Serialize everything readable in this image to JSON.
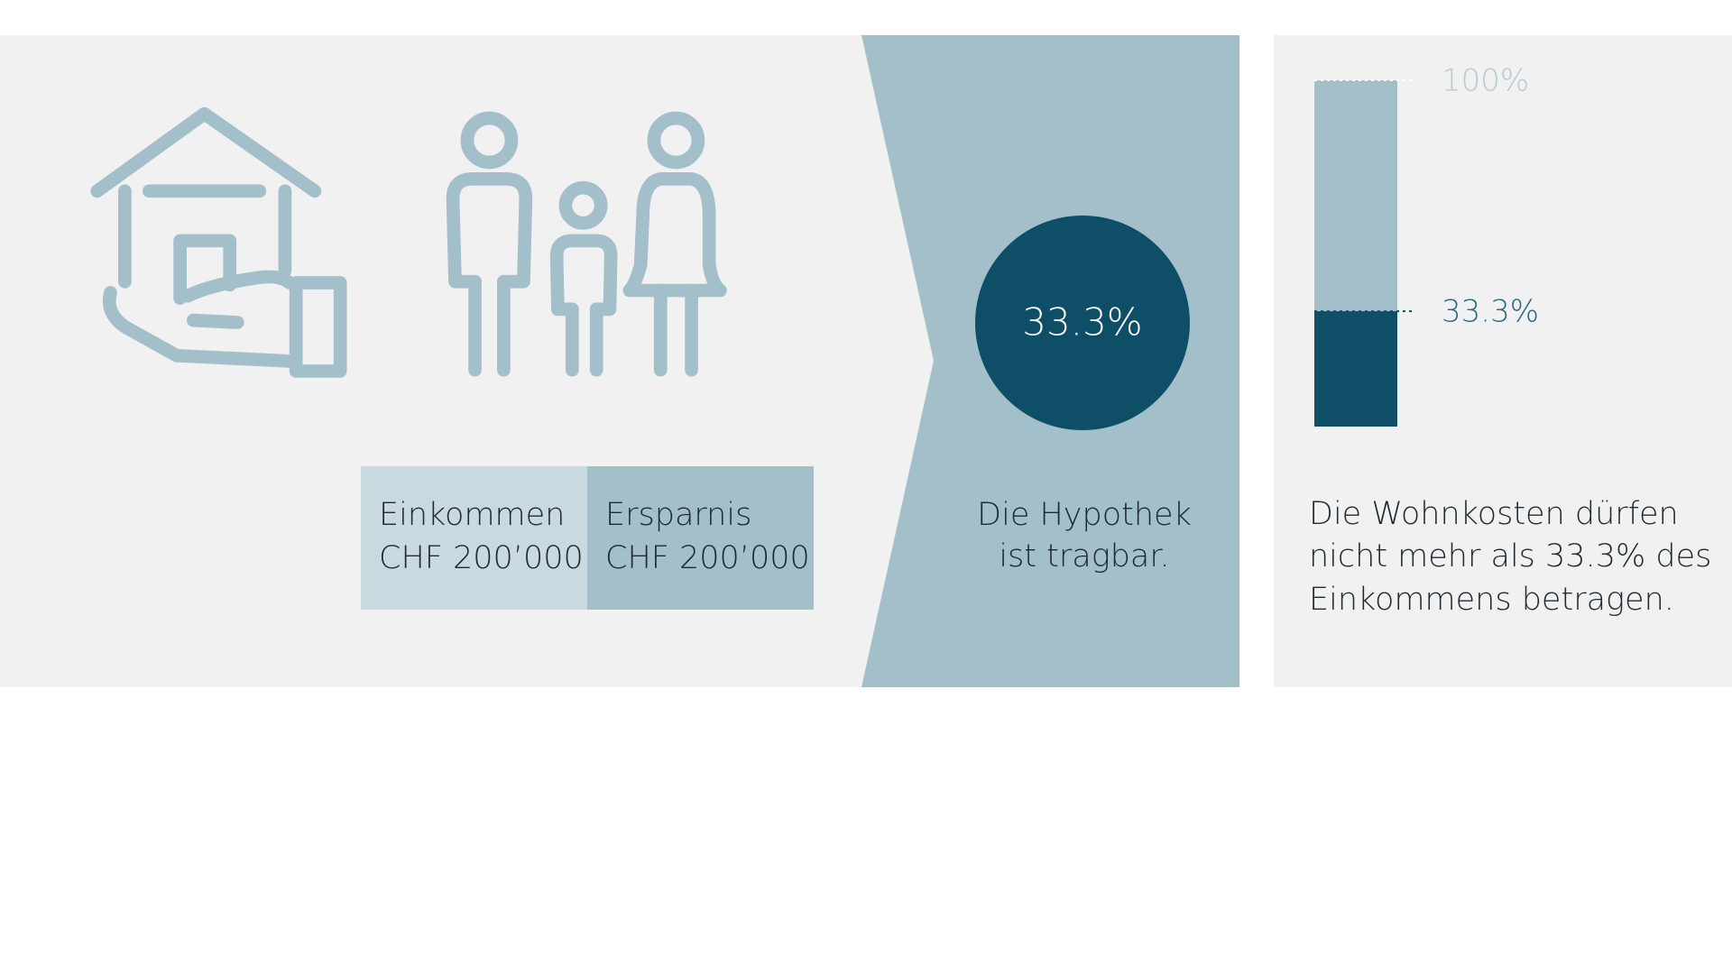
{
  "income": {
    "label": "Einkommen",
    "amount": "CHF 200’000"
  },
  "savings": {
    "label": "Ersparnis",
    "amount": "CHF 200’000"
  },
  "result": {
    "percentage": "33.3%",
    "text_lines": [
      "Die Hypothek",
      "ist tragbar."
    ]
  },
  "gauge": {
    "max": 100,
    "max_label": "100%",
    "value": 33.3,
    "value_label": "33.3%",
    "text_lines": [
      "Die Wohnkosten dürfen",
      "nicht mehr als 33.3% des",
      "Einkommens betragen."
    ]
  }
}
